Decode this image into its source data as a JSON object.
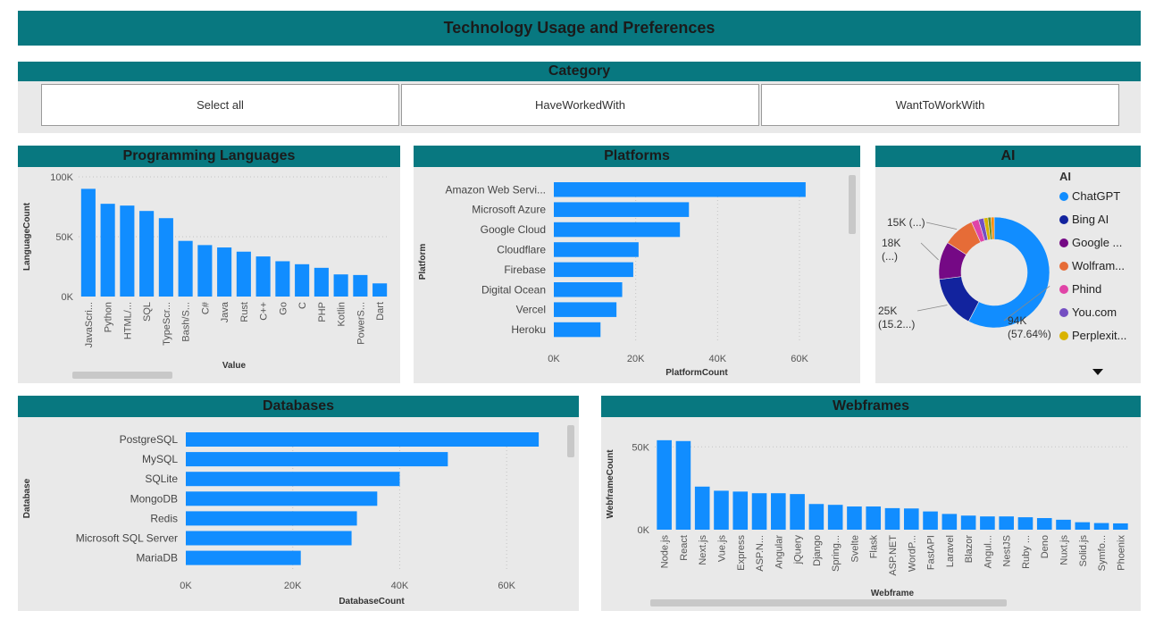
{
  "page": {
    "title": "Technology Usage and Preferences"
  },
  "category": {
    "title": "Category",
    "options": [
      "Select all",
      "HaveWorkedWith",
      "WantToWorkWith"
    ]
  },
  "colors": {
    "accent": "#087880",
    "bar": "#118dff",
    "panel": "#e9e9e9"
  },
  "chart_data": [
    {
      "id": "languages",
      "type": "bar",
      "title": "Programming Languages",
      "xlabel": "Value",
      "ylabel": "LanguageCount",
      "ylim": [
        0,
        100000
      ],
      "yticks": [
        {
          "v": 0,
          "label": "0K"
        },
        {
          "v": 50000,
          "label": "50K"
        },
        {
          "v": 100000,
          "label": "100K"
        }
      ],
      "categories": [
        "JavaScri...",
        "Python",
        "HTML/...",
        "SQL",
        "TypeScr...",
        "Bash/S...",
        "C#",
        "Java",
        "Rust",
        "C++",
        "Go",
        "C",
        "PHP",
        "Kotlin",
        "PowerS...",
        "Dart"
      ],
      "values": [
        90000,
        77500,
        76000,
        71500,
        65500,
        46500,
        43000,
        41000,
        37500,
        33500,
        29500,
        27000,
        24000,
        18500,
        18000,
        11000
      ],
      "grid": true
    },
    {
      "id": "platforms",
      "type": "bar",
      "orientation": "horizontal",
      "title": "Platforms",
      "xlabel": "PlatformCount",
      "ylabel": "Platform",
      "xlim": [
        0,
        72000
      ],
      "xticks": [
        {
          "v": 0,
          "label": "0K"
        },
        {
          "v": 20000,
          "label": "20K"
        },
        {
          "v": 40000,
          "label": "40K"
        },
        {
          "v": 60000,
          "label": "60K"
        }
      ],
      "categories": [
        "Amazon Web Servi...",
        "Microsoft Azure",
        "Google Cloud",
        "Cloudflare",
        "Firebase",
        "Digital Ocean",
        "Vercel",
        "Heroku"
      ],
      "values": [
        61500,
        33000,
        30800,
        20700,
        19400,
        16700,
        15300,
        11400
      ],
      "grid": true
    },
    {
      "id": "ai",
      "type": "pie",
      "title": "AI",
      "legend_title": "AI",
      "legend_position": "right",
      "slices": [
        {
          "name": "ChatGPT",
          "value": 94,
          "color": "#118dff"
        },
        {
          "name": "Bing AI",
          "value": 25,
          "color": "#12239e"
        },
        {
          "name": "Google ...",
          "value": 18,
          "color": "#750985"
        },
        {
          "name": "Wolfram...",
          "value": 15,
          "color": "#e66c37"
        },
        {
          "name": "Phind",
          "value": 3.5,
          "color": "#e044a7"
        },
        {
          "name": "You.com",
          "value": 2.5,
          "color": "#744ec2"
        },
        {
          "name": "Perplexit...",
          "value": 2,
          "color": "#d9b300"
        },
        {
          "name": "",
          "value": 1.5,
          "color": "#6b8e23"
        },
        {
          "name": "",
          "value": 1.5,
          "color": "#ff8c00"
        }
      ],
      "data_labels": [
        {
          "line1": "94K",
          "line2": "(57.64%)"
        },
        {
          "line1": "25K",
          "line2": "(15.2...)"
        },
        {
          "line1": "18K",
          "line2": "(...)"
        },
        {
          "line1": "15K (...)",
          "line2": ""
        }
      ]
    },
    {
      "id": "databases",
      "type": "bar",
      "orientation": "horizontal",
      "title": "Databases",
      "xlabel": "DatabaseCount",
      "ylabel": "Database",
      "xlim": [
        0,
        73000
      ],
      "xticks": [
        {
          "v": 0,
          "label": "0K"
        },
        {
          "v": 20000,
          "label": "20K"
        },
        {
          "v": 40000,
          "label": "40K"
        },
        {
          "v": 60000,
          "label": "60K"
        }
      ],
      "categories": [
        "PostgreSQL",
        "MySQL",
        "SQLite",
        "MongoDB",
        "Redis",
        "Microsoft SQL Server",
        "MariaDB"
      ],
      "values": [
        66000,
        49000,
        40000,
        35800,
        32000,
        31000,
        21500
      ],
      "grid": true
    },
    {
      "id": "webframes",
      "type": "bar",
      "title": "Webframes",
      "xlabel": "Webframe",
      "ylabel": "WebframeCount",
      "ylim": [
        0,
        55000
      ],
      "yticks": [
        {
          "v": 0,
          "label": "0K"
        },
        {
          "v": 50000,
          "label": "50K"
        }
      ],
      "categories": [
        "Node.js",
        "React",
        "Next.js",
        "Vue.js",
        "Express",
        "ASP.N...",
        "Angular",
        "jQuery",
        "Django",
        "Spring...",
        "Svelte",
        "Flask",
        "ASP.NET",
        "WordP...",
        "FastAPI",
        "Laravel",
        "Blazor",
        "Angul...",
        "NestJS",
        "Ruby ...",
        "Deno",
        "Nuxt.js",
        "Solid.js",
        "Symfo...",
        "Phoenix"
      ],
      "values": [
        54000,
        53500,
        26000,
        23500,
        23000,
        22000,
        22000,
        21500,
        15500,
        15000,
        14000,
        14000,
        13000,
        12800,
        11000,
        9500,
        8500,
        8000,
        8000,
        7500,
        7000,
        6000,
        4500,
        4000,
        3800
      ],
      "grid": true
    }
  ]
}
